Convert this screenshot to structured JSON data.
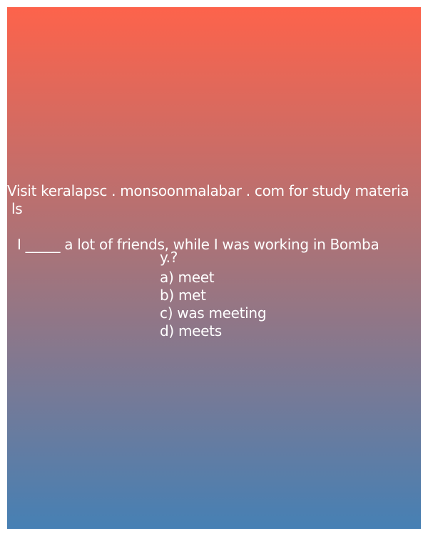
{
  "promo": {
    "line1": "Visit keralapsc . monsoonmalabar . com for study materia",
    "line2": "ls"
  },
  "question": {
    "line1": "I _____ a lot of friends, while I was working in Bomba",
    "line2": "y.?"
  },
  "options": [
    "a) meet",
    "b) met",
    "c) was meeting",
    "d) meets"
  ],
  "colors": {
    "gradient_top": "#fd634b",
    "gradient_bottom": "#4680b4",
    "text": "#ffffff"
  }
}
